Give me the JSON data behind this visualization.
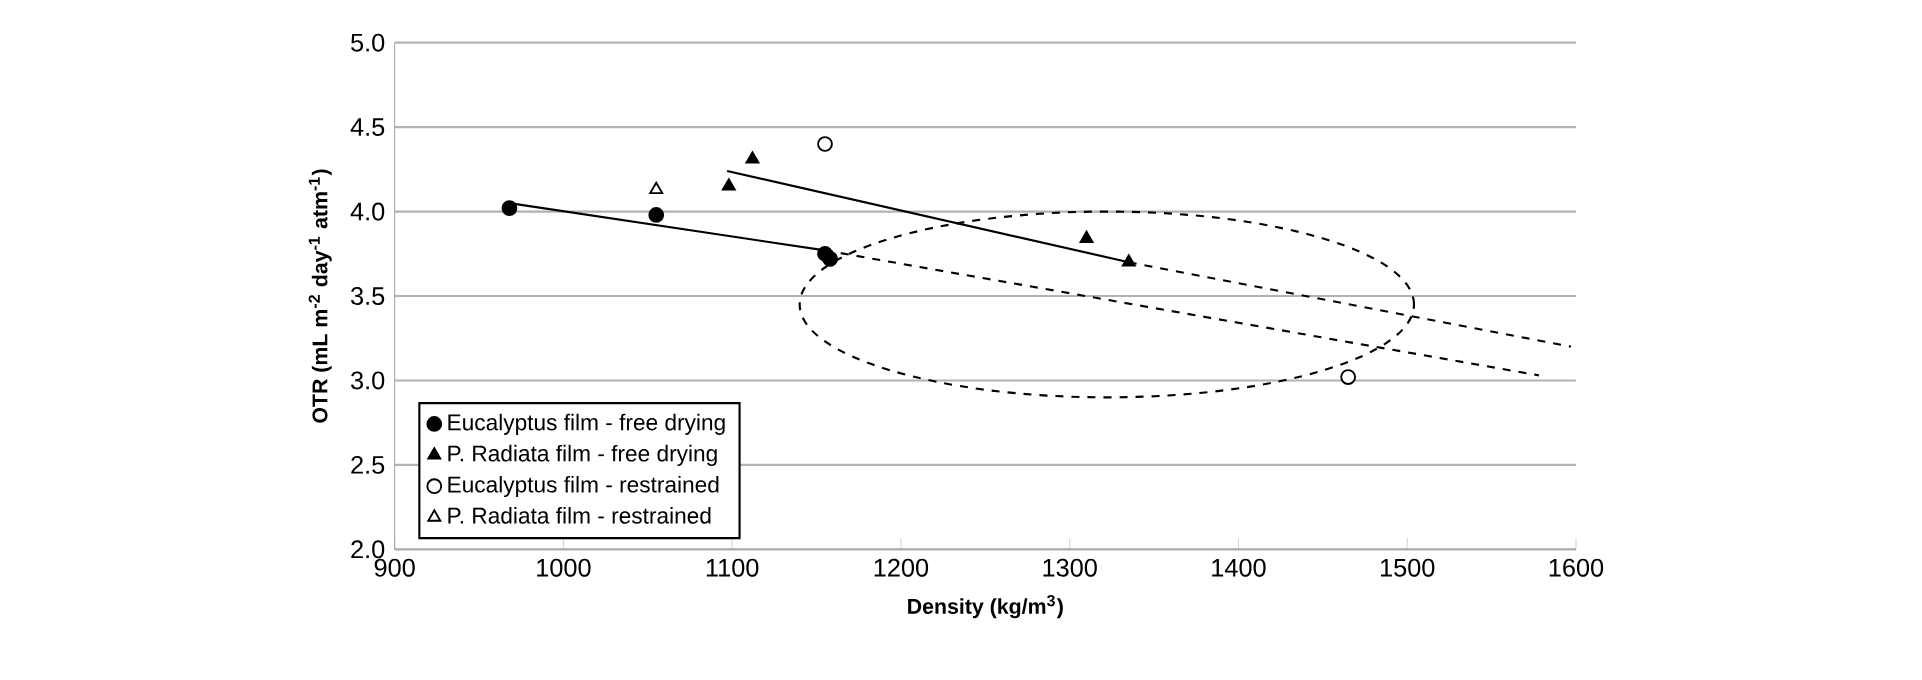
{
  "chart_data": {
    "type": "scatter",
    "xlabel": "**Density (kg/m$^{3}$)**",
    "ylabel": "**OTR (mL m$^{-2}$ day$^{-1}$ atm$^{-1}$)**",
    "xlim": [
      900,
      1600
    ],
    "xticks": [
      900,
      1000,
      1100,
      1200,
      1300,
      1400,
      1500,
      1600
    ],
    "ylim": [
      2.0,
      5.0
    ],
    "yticks": [
      {
        "value": 2.0,
        "label": "2.0"
      },
      {
        "value": 2.5,
        "label": "2.5"
      },
      {
        "value": 3.0,
        "label": "3.0"
      },
      {
        "value": 3.5,
        "label": "3.5"
      },
      {
        "value": 4.0,
        "label": "4.0"
      },
      {
        "value": 4.5,
        "label": "4.5"
      },
      {
        "value": 5.0,
        "label": "5.0"
      }
    ],
    "grid": "y",
    "legend": "bottom left",
    "series": [
      {
        "name": "Eucalyptus film - free drying",
        "color": "#000000",
        "marker": "circle",
        "x": [
          968,
          1055,
          1155,
          1158
        ],
        "values": [
          4.02,
          3.98,
          3.75,
          3.72
        ]
      },
      {
        "name": "P. Radiata film - free drying",
        "color": "#000000",
        "marker": "triangle",
        "x": [
          1098,
          1112,
          1310,
          1335
        ],
        "values": [
          4.15,
          4.31,
          3.84,
          3.7
        ]
      },
      {
        "name": "Eucalyptus film - restrained",
        "color": "#ffffff",
        "marker": "circle",
        "x": [
          1155,
          1465
        ],
        "values": [
          4.4,
          3.02
        ]
      },
      {
        "name": "P. Radiata  film - restrained",
        "color": "#ffffff",
        "marker": "triangle",
        "x": [
          1055
        ],
        "values": [
          4.13
        ]
      },
      {
        "type": "line",
        "color": "#000000",
        "line_style": "solid",
        "marker": "none",
        "x": [
          968,
          1155
        ],
        "values": [
          4.05,
          3.77
        ]
      },
      {
        "type": "line",
        "color": "#000000",
        "line_style": "dashed",
        "marker": "none",
        "x": [
          1155,
          1578
        ],
        "values": [
          3.77,
          3.03
        ]
      },
      {
        "type": "line",
        "color": "#000000",
        "line_style": "solid",
        "marker": "none",
        "x": [
          1097,
          1335
        ],
        "values": [
          4.24,
          3.7
        ]
      },
      {
        "type": "line",
        "color": "#000000",
        "line_style": "dashed",
        "marker": "none",
        "x": [
          1335,
          1597
        ],
        "values": [
          3.7,
          3.2
        ]
      }
    ]
  }
}
